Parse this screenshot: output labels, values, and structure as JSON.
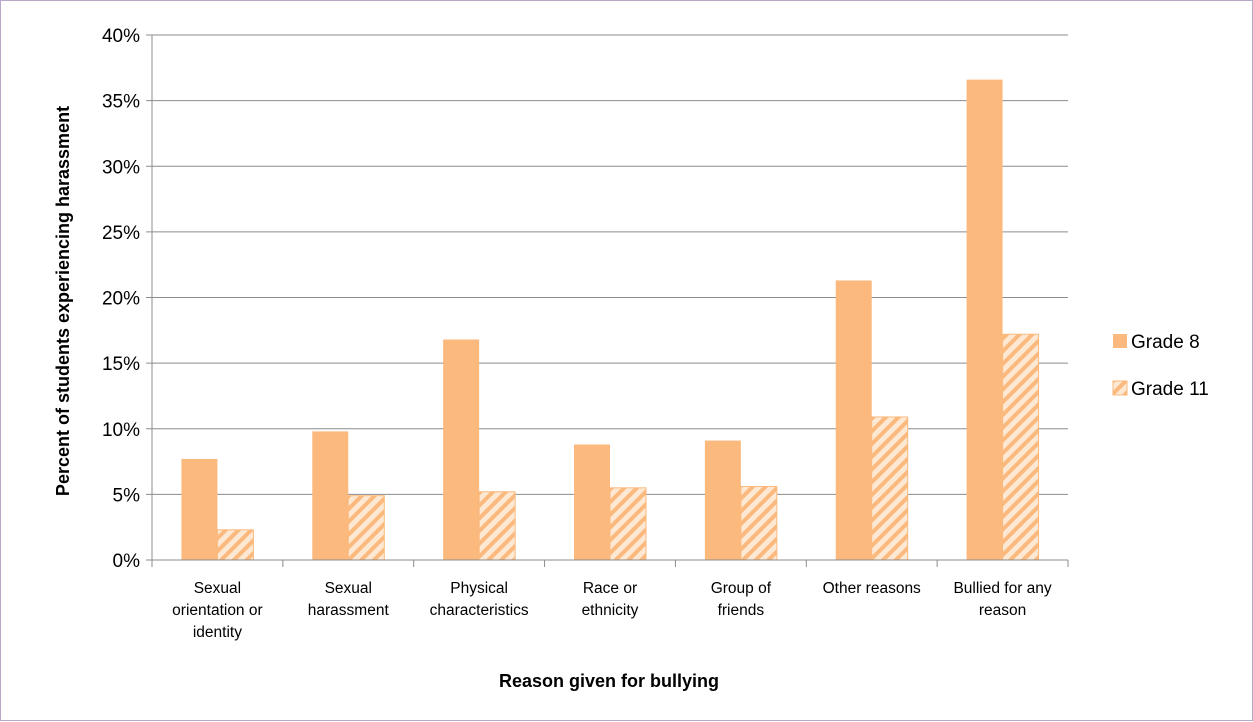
{
  "chart_data": {
    "type": "bar",
    "title": "",
    "xlabel": "Reason given for bullying",
    "ylabel": "Percent of students experiencing harassment",
    "categories": [
      "Sexual orientation or identity",
      "Sexual harassment",
      "Physical characteristics",
      "Race or ethnicity",
      "Group of friends",
      "Other reasons",
      "Bullied for any reason"
    ],
    "category_lines": [
      [
        "Sexual",
        "orientation or",
        "identity"
      ],
      [
        "Sexual",
        "harassment"
      ],
      [
        "Physical",
        "characteristics"
      ],
      [
        "Race or",
        "ethnicity"
      ],
      [
        "Group of",
        "friends"
      ],
      [
        "Other reasons"
      ],
      [
        "Bullied for any",
        "reason"
      ]
    ],
    "series": [
      {
        "name": "Grade 8",
        "values": [
          7.7,
          9.8,
          16.8,
          8.8,
          9.1,
          21.3,
          36.6
        ],
        "color": "#fbb97d",
        "pattern": "solid"
      },
      {
        "name": "Grade 11",
        "values": [
          2.3,
          4.9,
          5.2,
          5.5,
          5.6,
          10.9,
          17.2
        ],
        "color": "#fbb97d",
        "pattern": "hatched"
      }
    ],
    "ylim": [
      0,
      40
    ],
    "yticks": [
      0,
      5,
      10,
      15,
      20,
      25,
      30,
      35,
      40
    ],
    "ytick_labels": [
      "0%",
      "5%",
      "10%",
      "15%",
      "20%",
      "25%",
      "30%",
      "35%",
      "40%"
    ],
    "grid": true,
    "legend_position": "right"
  }
}
